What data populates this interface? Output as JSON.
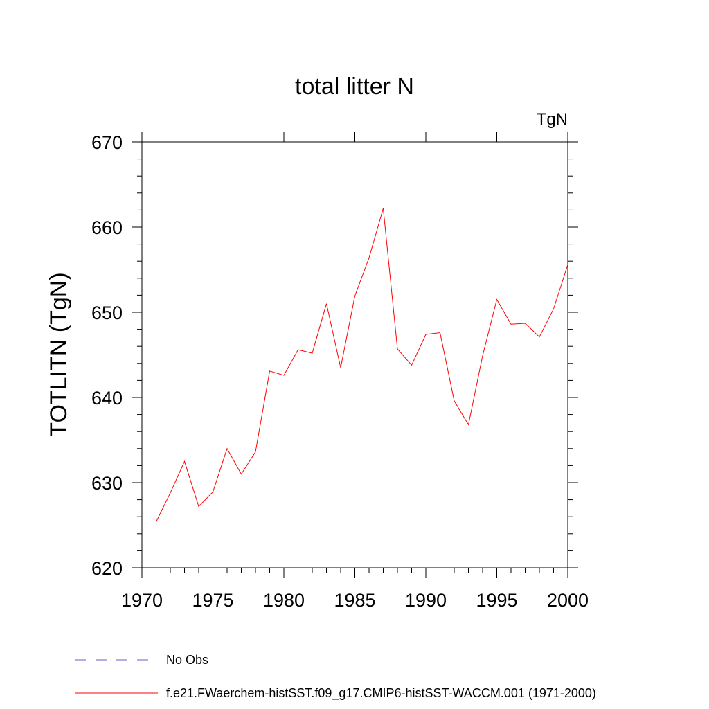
{
  "chart_data": {
    "type": "line",
    "title": "total litter N",
    "units_label": "TgN",
    "ylabel": "TOTLITN  (TgN)",
    "xlabel": "",
    "xlim": [
      1970,
      2000
    ],
    "ylim": [
      620,
      670
    ],
    "x_ticks": [
      1970,
      1975,
      1980,
      1985,
      1990,
      1995,
      2000
    ],
    "y_ticks": [
      620,
      630,
      640,
      650,
      660,
      670
    ],
    "grid": false,
    "legend_position": "bottom",
    "series": [
      {
        "name": "No Obs",
        "color": "#6a5acd",
        "style": "dashed",
        "x": [],
        "values": []
      },
      {
        "name": "f.e21.FWaerchem-histSST.f09_g17.CMIP6-histSST-WACCM.001 (1971-2000)",
        "color": "#ff0000",
        "style": "solid",
        "x": [
          1971,
          1972,
          1973,
          1974,
          1975,
          1976,
          1977,
          1978,
          1979,
          1980,
          1981,
          1982,
          1983,
          1984,
          1985,
          1986,
          1987,
          1988,
          1989,
          1990,
          1991,
          1992,
          1993,
          1994,
          1995,
          1996,
          1997,
          1998,
          1999,
          2000
        ],
        "values": [
          625.4,
          628.8,
          632.5,
          627.2,
          628.9,
          634.0,
          631.0,
          633.6,
          643.1,
          642.6,
          645.6,
          645.2,
          651.0,
          643.5,
          651.9,
          656.4,
          662.2,
          645.7,
          643.8,
          647.4,
          647.6,
          639.6,
          636.8,
          644.9,
          651.5,
          648.6,
          648.7,
          647.1,
          650.4,
          655.6
        ]
      }
    ]
  }
}
